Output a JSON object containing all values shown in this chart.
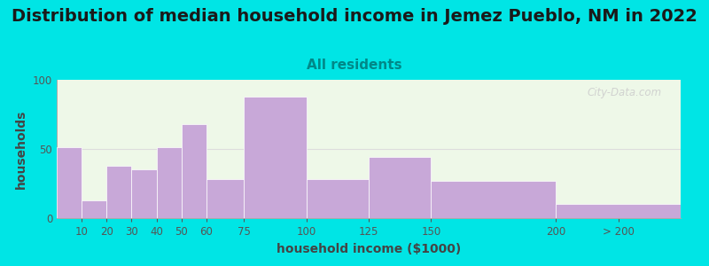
{
  "title": "Distribution of median household income in Jemez Pueblo, NM in 2022",
  "subtitle": "All residents",
  "xlabel": "household income ($1000)",
  "ylabel": "households",
  "bar_labels": [
    "10",
    "20",
    "30",
    "40",
    "50",
    "60",
    "75",
    "100",
    "125",
    "150",
    "200",
    "> 200"
  ],
  "bar_lefts": [
    0,
    10,
    20,
    30,
    40,
    50,
    60,
    75,
    100,
    125,
    150,
    200
  ],
  "bar_widths": [
    10,
    10,
    10,
    10,
    10,
    10,
    15,
    25,
    25,
    25,
    50,
    50
  ],
  "bar_values": [
    51,
    13,
    38,
    35,
    51,
    68,
    28,
    88,
    28,
    44,
    27,
    10
  ],
  "xtick_positions": [
    10,
    20,
    30,
    40,
    50,
    60,
    75,
    100,
    125,
    150,
    200,
    225
  ],
  "xtick_labels": [
    "10",
    "20",
    "30",
    "40",
    "50",
    "60",
    "75",
    "100",
    "125",
    "150",
    "200",
    "> 200"
  ],
  "bar_color": "#c8a8d8",
  "bar_edge_color": "#c8a8d8",
  "background_color": "#00e5e5",
  "plot_bg_color": "#eef8e8",
  "ylim": [
    0,
    100
  ],
  "yticks": [
    0,
    50,
    100
  ],
  "xlim": [
    0,
    250
  ],
  "title_fontsize": 14,
  "subtitle_fontsize": 11,
  "axis_label_fontsize": 10,
  "tick_fontsize": 8.5,
  "watermark": "City-Data.com"
}
